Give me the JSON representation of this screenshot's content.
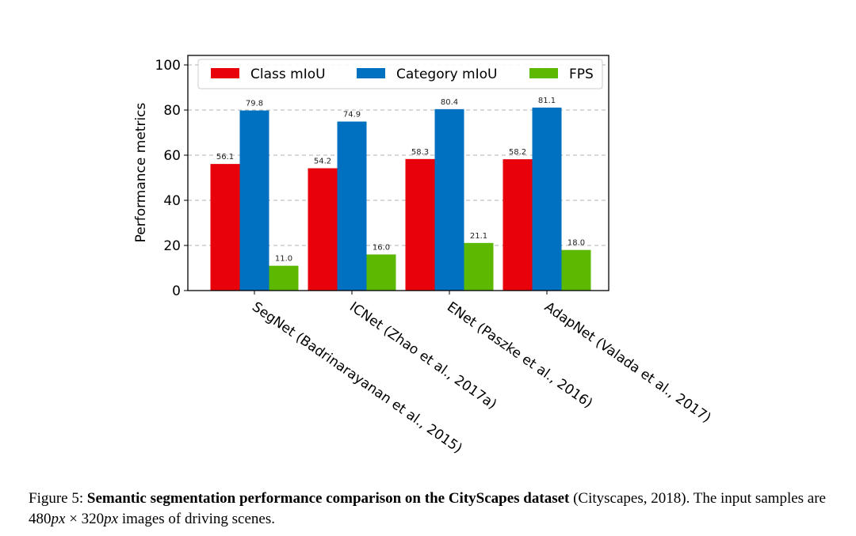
{
  "chart_data": {
    "type": "bar",
    "categories": [
      "SegNet (Badrinarayanan et al., 2015)",
      "ICNet (Zhao et al., 2017a)",
      "ENet (Paszke et al., 2016)",
      "AdapNet (Valada et al., 2017)"
    ],
    "series": [
      {
        "name": "Class mIoU",
        "color": "#e8000b",
        "values": [
          56.1,
          54.2,
          58.3,
          58.2
        ]
      },
      {
        "name": "Category mIoU",
        "color": "#0070c0",
        "values": [
          79.8,
          74.9,
          80.4,
          81.1
        ]
      },
      {
        "name": "FPS",
        "color": "#5cb800",
        "values": [
          11.0,
          16.0,
          21.1,
          18.0
        ]
      }
    ],
    "value_labels": [
      [
        "56.1",
        "54.2",
        "58.3",
        "58.2"
      ],
      [
        "79.8",
        "74.9",
        "80.4",
        "81.1"
      ],
      [
        "11.0",
        "16.0",
        "21.1",
        "18.0"
      ]
    ],
    "title": "",
    "xlabel": "",
    "ylabel": "Performance metrics",
    "ylim": [
      0,
      100
    ],
    "yticks": [
      "0",
      "20",
      "40",
      "60",
      "80",
      "100"
    ],
    "grid": true,
    "legend_position": "top"
  },
  "caption": {
    "prefix": "Figure 5: ",
    "bold": "Semantic segmentation performance comparison on the CityScapes dataset",
    "after_bold": " (Cityscapes, 2018).  The input samples are ",
    "math_1": "480",
    "unit_1": "px",
    "times": " × ",
    "math_2": "320",
    "unit_2": "px",
    "suffix": " images of driving scenes."
  }
}
